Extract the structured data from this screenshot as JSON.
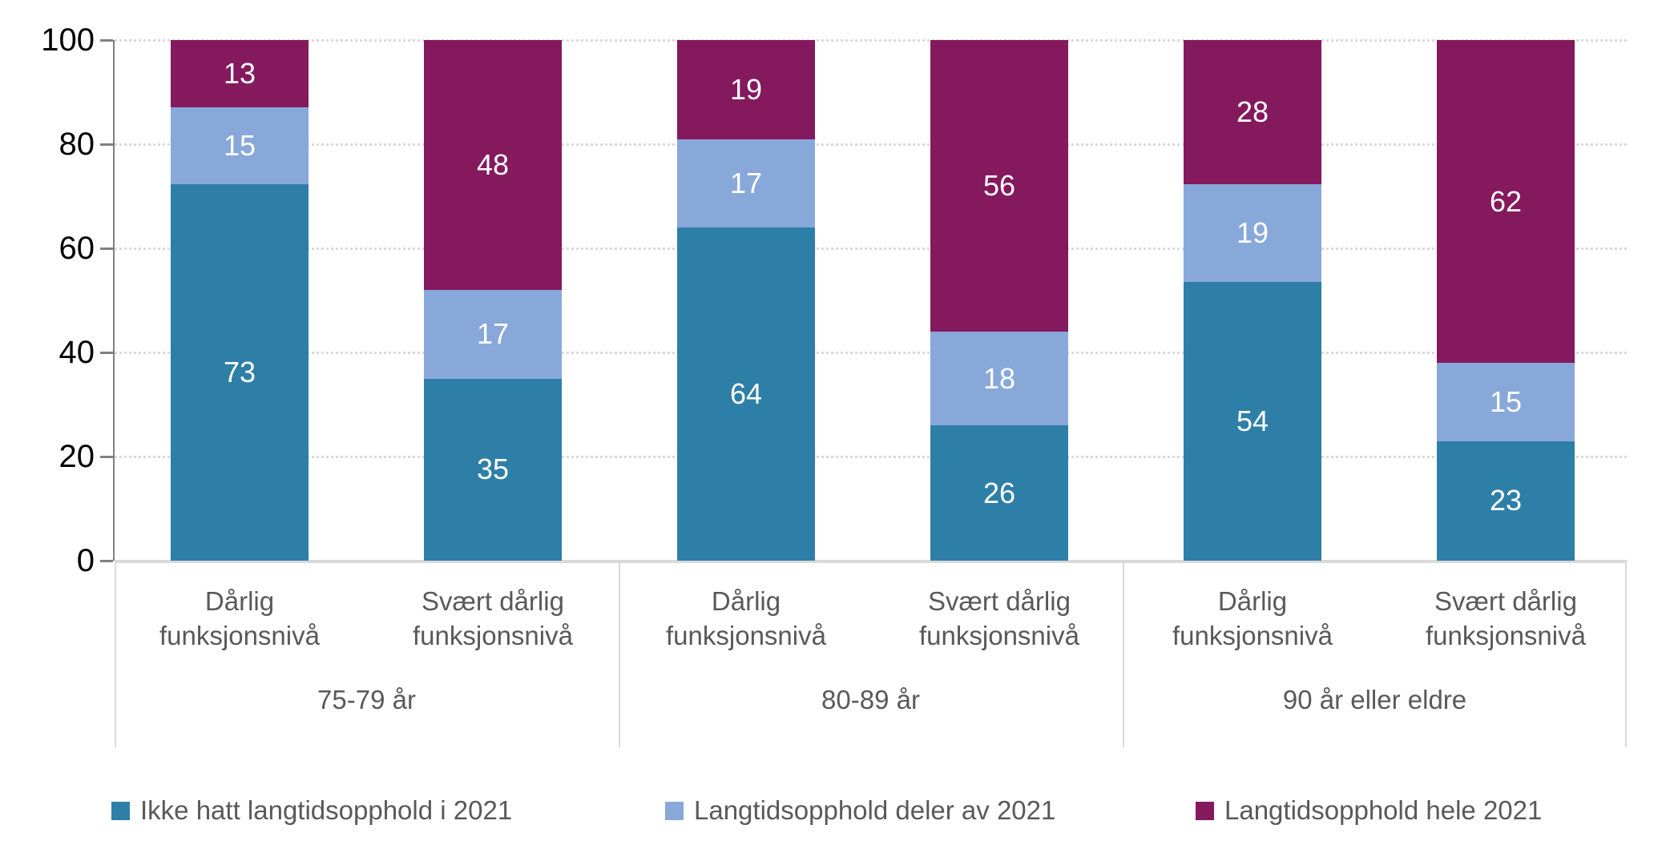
{
  "chart_data": {
    "type": "bar",
    "stacked": "percent",
    "y_axis": {
      "min": 0,
      "max": 100,
      "ticks": [
        0,
        20,
        40,
        60,
        80,
        100
      ],
      "gridlines": "dotted"
    },
    "groups": [
      {
        "label": "75-79 år",
        "categories": [
          "Dårlig funksjonsnivå",
          "Svært dårlig funksjonsnivå"
        ]
      },
      {
        "label": "80-89 år",
        "categories": [
          "Dårlig funksjonsnivå",
          "Svært dårlig funksjonsnivå"
        ]
      },
      {
        "label": "90 år eller eldre",
        "categories": [
          "Dårlig funksjonsnivå",
          "Svært dårlig funksjonsnivå"
        ]
      }
    ],
    "series": [
      {
        "name": "Ikke hatt langtidsopphold i 2021",
        "color": "#2E7FA7",
        "values": [
          73,
          35,
          64,
          26,
          54,
          23
        ]
      },
      {
        "name": "Langtidsopphold deler av 2021",
        "color": "#88A8DA",
        "values": [
          15,
          17,
          17,
          18,
          19,
          15
        ]
      },
      {
        "name": "Langtidsopphold hele 2021",
        "color": "#84195E",
        "values": [
          13,
          48,
          19,
          56,
          28,
          62
        ]
      }
    ],
    "legend_position": "bottom",
    "value_label_color": "#FFFFFF",
    "axis_text_color": "#000000",
    "label_text_color": "#595959",
    "grid_color": "#D9D9D9",
    "axis_line_color": "#808080"
  }
}
